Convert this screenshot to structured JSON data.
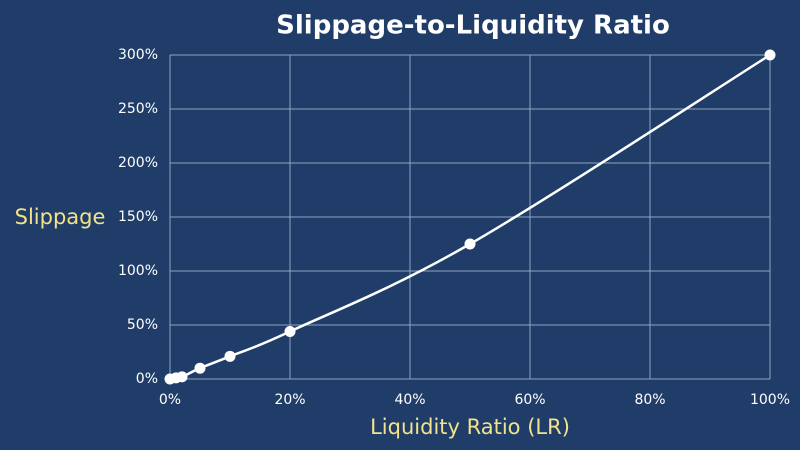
{
  "chart_data": {
    "type": "scatter-line",
    "title": "Slippage-to-Liquidity Ratio",
    "x_label": "Liquidity Ratio (LR)",
    "y_label": "Slippage",
    "x": [
      0,
      1,
      2,
      5,
      10,
      20,
      50,
      100
    ],
    "series": [
      {
        "name": "Slippage",
        "color": "#ffffff",
        "values": [
          0,
          1,
          2,
          10,
          21,
          44,
          125,
          300
        ]
      }
    ],
    "xlim": [
      0,
      100
    ],
    "ylim": [
      0,
      300
    ],
    "xticks": [
      {
        "value": 0,
        "label": "0%"
      },
      {
        "value": 20,
        "label": "20%"
      },
      {
        "value": 40,
        "label": "40%"
      },
      {
        "value": 60,
        "label": "60%"
      },
      {
        "value": 80,
        "label": "80%"
      },
      {
        "value": 100,
        "label": "100%"
      }
    ],
    "yticks": [
      {
        "value": 0,
        "label": "0%"
      },
      {
        "value": 50,
        "label": "50%"
      },
      {
        "value": 100,
        "label": "100%"
      },
      {
        "value": 150,
        "label": "150%"
      },
      {
        "value": 200,
        "label": "200%"
      },
      {
        "value": 250,
        "label": "250%"
      },
      {
        "value": 300,
        "label": "300%"
      }
    ],
    "grid": true,
    "grid_color": "#8fa3bf",
    "label_color": "#f2e38a"
  }
}
